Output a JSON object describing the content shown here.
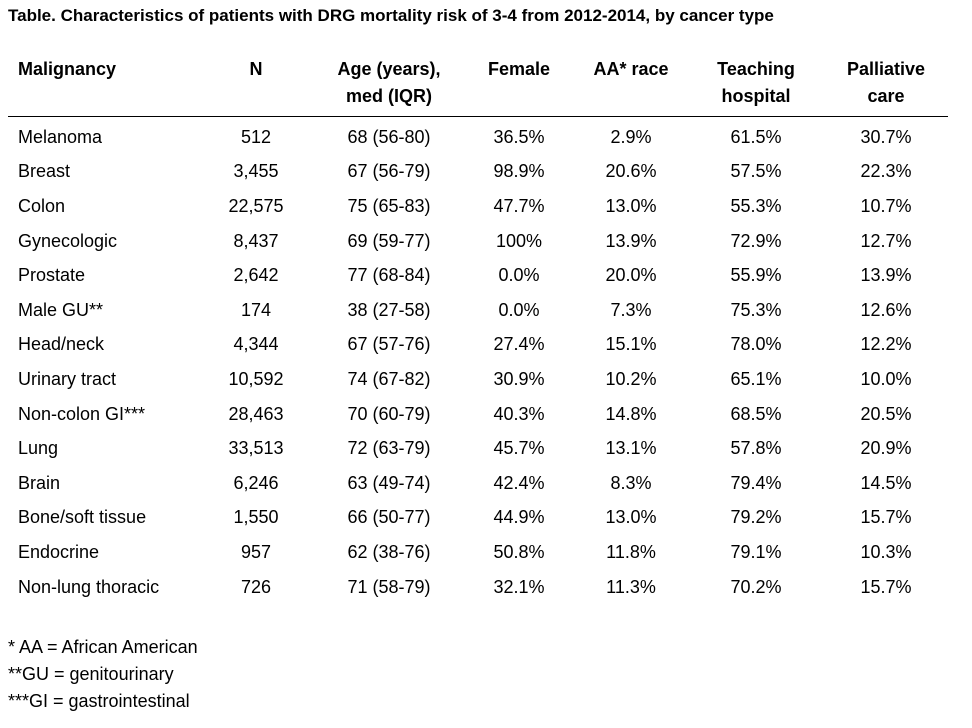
{
  "title": "Table. Characteristics of patients with DRG mortality risk of 3-4 from 2012-2014, by cancer type",
  "headers": [
    [
      "Malignancy"
    ],
    [
      "N"
    ],
    [
      "Age (years),",
      "med (IQR)"
    ],
    [
      "Female"
    ],
    [
      "AA* race"
    ],
    [
      "Teaching",
      "hospital"
    ],
    [
      "Palliative",
      "care"
    ]
  ],
  "rows": [
    [
      "Melanoma",
      "512",
      "68 (56-80)",
      "36.5%",
      "2.9%",
      "61.5%",
      "30.7%"
    ],
    [
      "Breast",
      "3,455",
      "67 (56-79)",
      "98.9%",
      "20.6%",
      "57.5%",
      "22.3%"
    ],
    [
      "Colon",
      "22,575",
      "75 (65-83)",
      "47.7%",
      "13.0%",
      "55.3%",
      "10.7%"
    ],
    [
      "Gynecologic",
      "8,437",
      "69 (59-77)",
      "100%",
      "13.9%",
      "72.9%",
      "12.7%"
    ],
    [
      "Prostate",
      "2,642",
      "77 (68-84)",
      "0.0%",
      "20.0%",
      "55.9%",
      "13.9%"
    ],
    [
      "Male GU**",
      "174",
      "38 (27-58)",
      "0.0%",
      "7.3%",
      "75.3%",
      "12.6%"
    ],
    [
      "Head/neck",
      "4,344",
      "67 (57-76)",
      "27.4%",
      "15.1%",
      "78.0%",
      "12.2%"
    ],
    [
      "Urinary tract",
      "10,592",
      "74 (67-82)",
      "30.9%",
      "10.2%",
      "65.1%",
      "10.0%"
    ],
    [
      "Non-colon GI***",
      "28,463",
      "70 (60-79)",
      "40.3%",
      "14.8%",
      "68.5%",
      "20.5%"
    ],
    [
      "Lung",
      "33,513",
      "72 (63-79)",
      "45.7%",
      "13.1%",
      "57.8%",
      "20.9%"
    ],
    [
      "Brain",
      "6,246",
      "63 (49-74)",
      "42.4%",
      "8.3%",
      "79.4%",
      "14.5%"
    ],
    [
      "Bone/soft tissue",
      "1,550",
      "66 (50-77)",
      "44.9%",
      "13.0%",
      "79.2%",
      "15.7%"
    ],
    [
      "Endocrine",
      "957",
      "62 (38-76)",
      "50.8%",
      "11.8%",
      "79.1%",
      "10.3%"
    ],
    [
      "Non-lung thoracic",
      "726",
      "71 (58-79)",
      "32.1%",
      "11.3%",
      "70.2%",
      "15.7%"
    ]
  ],
  "footnotes": [
    "* AA = African American",
    "**GU = genitourinary",
    "***GI = gastrointestinal"
  ]
}
